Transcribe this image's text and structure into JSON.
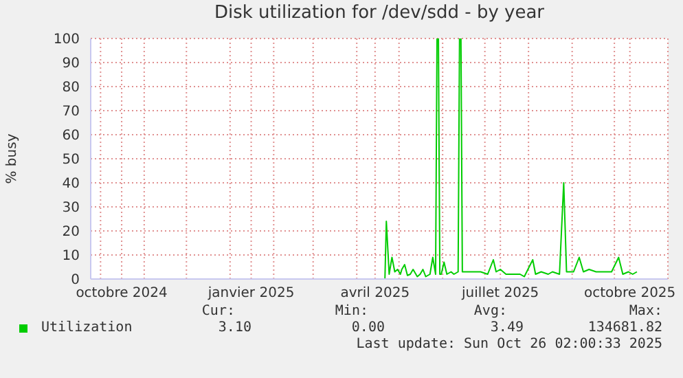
{
  "chart_data": {
    "type": "line",
    "title": "Disk utilization for /dev/sdd - by year",
    "ylabel": "% busy",
    "x": [
      "2024-09-24",
      "2025-04-21",
      "2025-04-22",
      "2025-04-24",
      "2025-04-26",
      "2025-04-28",
      "2025-04-30",
      "2025-05-02",
      "2025-05-03",
      "2025-05-05",
      "2025-05-07",
      "2025-05-09",
      "2025-05-11",
      "2025-05-14",
      "2025-05-16",
      "2025-05-18",
      "2025-05-20",
      "2025-05-23",
      "2025-05-25",
      "2025-05-27",
      "2025-05-28",
      "2025-05-29",
      "2025-05-30",
      "2025-05-31",
      "2025-06-02",
      "2025-06-04",
      "2025-06-07",
      "2025-06-09",
      "2025-06-12",
      "2025-06-13",
      "2025-06-14",
      "2025-06-15",
      "2025-06-18",
      "2025-06-23",
      "2025-06-28",
      "2025-07-03",
      "2025-07-07",
      "2025-07-09",
      "2025-07-12",
      "2025-07-16",
      "2025-07-21",
      "2025-07-26",
      "2025-07-29",
      "2025-08-04",
      "2025-08-06",
      "2025-08-10",
      "2025-08-15",
      "2025-08-18",
      "2025-08-23",
      "2025-08-26",
      "2025-08-28",
      "2025-09-02",
      "2025-09-06",
      "2025-09-09",
      "2025-09-13",
      "2025-09-18",
      "2025-09-23",
      "2025-09-29",
      "2025-10-04",
      "2025-10-07",
      "2025-10-11",
      "2025-10-14",
      "2025-10-17"
    ],
    "series": [
      {
        "name": "Utilization",
        "color": "#00cc00",
        "values": [
          0,
          0,
          24,
          2,
          9,
          3,
          4,
          2,
          4,
          6,
          1.5,
          2,
          4,
          1,
          2,
          4,
          1,
          2,
          9,
          2,
          100,
          100,
          2,
          2,
          7,
          2,
          3,
          2,
          3,
          100,
          100,
          3,
          3,
          3,
          3,
          2,
          8,
          3,
          4,
          2,
          2,
          2,
          1,
          8,
          2,
          3,
          2,
          3,
          2,
          40,
          3,
          3,
          9,
          3,
          4,
          3,
          3,
          3,
          9,
          2,
          3,
          2,
          3
        ]
      }
    ],
    "xlim": [
      "2024-09-24",
      "2025-11-08"
    ],
    "xticks": [
      {
        "value": "2024-10-01",
        "label": null
      },
      {
        "value": "2024-10-16",
        "label": "octobre 2024"
      },
      {
        "value": "2024-11-01",
        "label": null
      },
      {
        "value": "2024-12-01",
        "label": null
      },
      {
        "value": "2025-01-01",
        "label": null
      },
      {
        "value": "2025-01-16",
        "label": "janvier 2025"
      },
      {
        "value": "2025-02-01",
        "label": null
      },
      {
        "value": "2025-03-01",
        "label": null
      },
      {
        "value": "2025-04-01",
        "label": null
      },
      {
        "value": "2025-04-14",
        "label": "avril 2025"
      },
      {
        "value": "2025-05-01",
        "label": null
      },
      {
        "value": "2025-06-01",
        "label": null
      },
      {
        "value": "2025-07-01",
        "label": null
      },
      {
        "value": "2025-07-12",
        "label": "juillet 2025"
      },
      {
        "value": "2025-08-01",
        "label": null
      },
      {
        "value": "2025-09-01",
        "label": null
      },
      {
        "value": "2025-10-01",
        "label": null
      },
      {
        "value": "2025-10-12",
        "label": "octobre 2025"
      }
    ],
    "ylim": [
      0,
      100
    ],
    "yticks": [
      0,
      10,
      20,
      30,
      40,
      50,
      60,
      70,
      80,
      90,
      100
    ],
    "grid": true,
    "legend": "bottom",
    "annotations": [
      "Cur:",
      "3.10",
      "Min:",
      "0.00",
      "Avg:",
      "3.49",
      "Max:",
      "134681.82",
      "Last update: Sun Oct 26 02:00:33 2025"
    ]
  }
}
